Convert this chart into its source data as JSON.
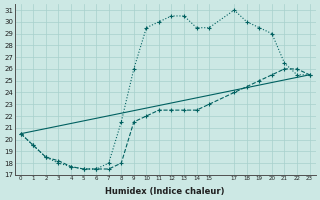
{
  "xlabel": "Humidex (Indice chaleur)",
  "xlim": [
    -0.5,
    23.5
  ],
  "ylim": [
    17,
    31.5
  ],
  "yticks": [
    17,
    18,
    19,
    20,
    21,
    22,
    23,
    24,
    25,
    26,
    27,
    28,
    29,
    30,
    31
  ],
  "xtick_pos": [
    0,
    1,
    2,
    3,
    4,
    5,
    6,
    7,
    8,
    9,
    10,
    11,
    12,
    13,
    14,
    15,
    17,
    18,
    19,
    20,
    21,
    22,
    23
  ],
  "xtick_labels": [
    "0",
    "1",
    "2",
    "3",
    "4",
    "5",
    "6",
    "7",
    "8",
    "9",
    "10",
    "11",
    "12",
    "13",
    "14",
    "15",
    "17",
    "18",
    "19",
    "20",
    "21",
    "22",
    "23"
  ],
  "background_color": "#cce8e4",
  "grid_color": "#a8d0cc",
  "line_color": "#006060",
  "line1_x": [
    0,
    1,
    2,
    3,
    4,
    5,
    6,
    7,
    8,
    9,
    10,
    11,
    12,
    13,
    14,
    15,
    17,
    18,
    19,
    20,
    21,
    22,
    23
  ],
  "line1_y": [
    20.5,
    19.5,
    18.5,
    18.0,
    17.7,
    17.5,
    17.5,
    18.0,
    21.5,
    26.0,
    29.5,
    30.0,
    30.5,
    30.5,
    29.5,
    29.5,
    31.0,
    30.0,
    29.5,
    29.0,
    26.5,
    25.5,
    25.5
  ],
  "line2_x": [
    0,
    1,
    2,
    3,
    4,
    5,
    6,
    7,
    8,
    9,
    10,
    11,
    12,
    13,
    14,
    15,
    17,
    18,
    19,
    20,
    21,
    22,
    23
  ],
  "line2_y": [
    20.5,
    19.5,
    18.5,
    18.2,
    17.7,
    17.5,
    17.5,
    17.5,
    18.0,
    21.5,
    22.0,
    22.5,
    22.5,
    22.5,
    22.5,
    23.0,
    24.0,
    24.5,
    25.0,
    25.5,
    26.0,
    26.0,
    25.5
  ],
  "line3_x": [
    0,
    23
  ],
  "line3_y": [
    20.5,
    25.5
  ]
}
